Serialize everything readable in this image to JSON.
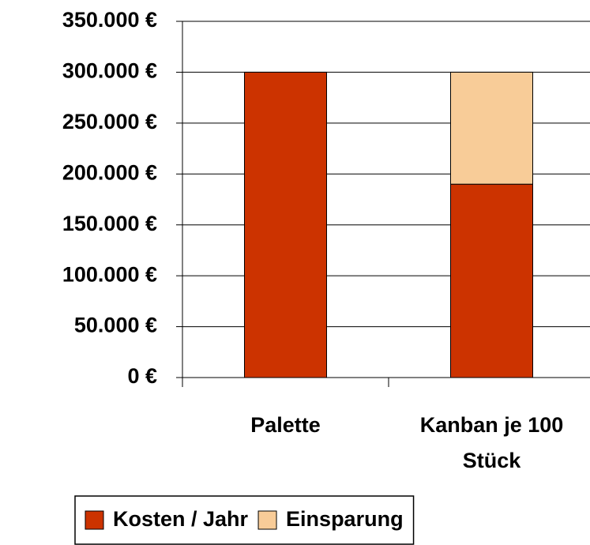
{
  "chart_data": {
    "type": "stacked_bar",
    "categories": [
      "Palette",
      "Kanban je 100 Stück"
    ],
    "series": [
      {
        "name": "Kosten / Jahr",
        "color": "#cc3300",
        "values": [
          300000,
          190000
        ]
      },
      {
        "name": "Einsparung",
        "color": "#f8cc98",
        "values": [
          0,
          110000
        ]
      }
    ],
    "ylim": [
      0,
      350000
    ],
    "yticks": [
      {
        "value": 0,
        "label": "0 €"
      },
      {
        "value": 50000,
        "label": "50.000 €"
      },
      {
        "value": 100000,
        "label": "100.000 €"
      },
      {
        "value": 150000,
        "label": "150.000 €"
      },
      {
        "value": 200000,
        "label": "200.000 €"
      },
      {
        "value": 250000,
        "label": "250.000 €"
      },
      {
        "value": 300000,
        "label": "300.000 €"
      },
      {
        "value": 350000,
        "label": "350.000 €"
      }
    ],
    "grid": true,
    "legend": "bottom"
  }
}
